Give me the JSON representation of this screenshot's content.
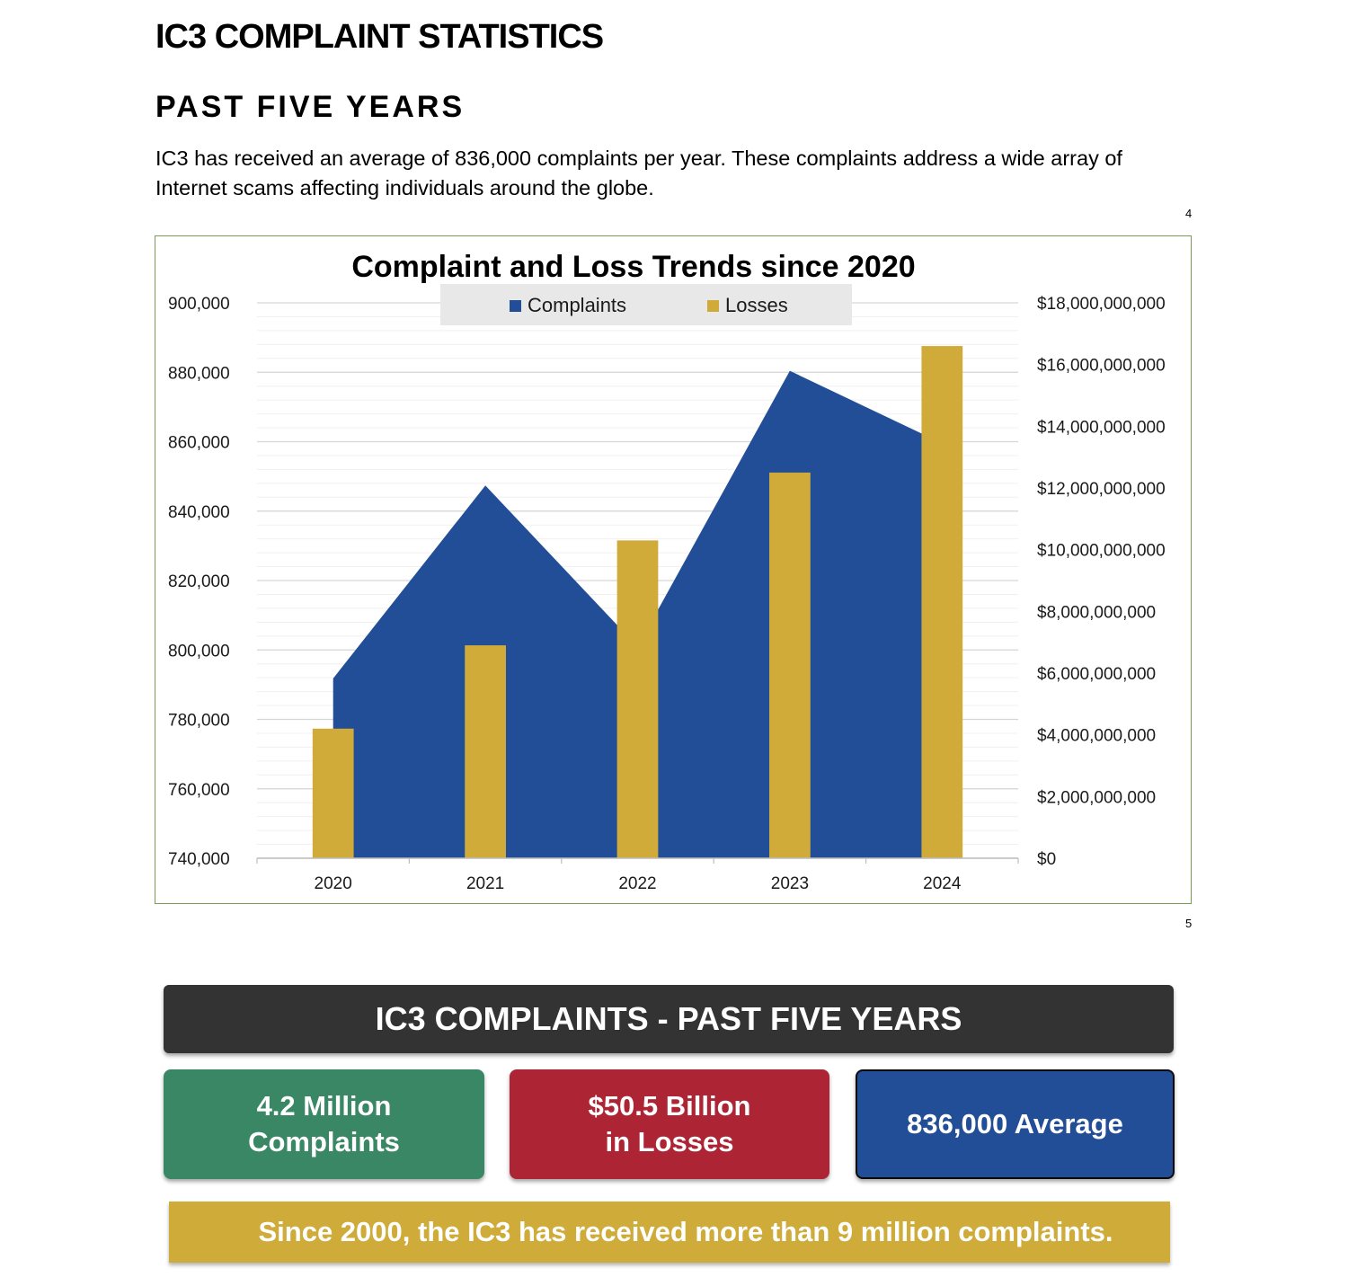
{
  "page_title": "IC3 COMPLAINT STATISTICS",
  "section_title": "PAST FIVE YEARS",
  "intro_text": "IC3 has received an average of 836,000 complaints per year. These complaints address a wide array of Internet scams affecting individuals around the globe.",
  "footnotes": {
    "chart_ref": "4",
    "summary_ref": "5"
  },
  "chart_data": {
    "type": "area",
    "title": "Complaint and Loss Trends since 2020",
    "categories": [
      "2020",
      "2021",
      "2022",
      "2023",
      "2024"
    ],
    "legend_position": "top",
    "grid": true,
    "series": [
      {
        "name": "Complaints",
        "type": "area",
        "axis": "left",
        "color": "#224d97",
        "values": [
          791790,
          847376,
          800944,
          880418,
          859532
        ]
      },
      {
        "name": "Losses",
        "type": "bar",
        "axis": "right",
        "color": "#d1ab3a",
        "values": [
          4200000000,
          6900000000,
          10300000000,
          12500000000,
          16600000000
        ]
      }
    ],
    "y_left": {
      "min": 740000,
      "max": 900000,
      "step": 20000,
      "tick_labels": [
        "740,000",
        "760,000",
        "780,000",
        "800,000",
        "820,000",
        "840,000",
        "860,000",
        "880,000",
        "900,000"
      ]
    },
    "y_right": {
      "min": 0,
      "max": 18000000000,
      "step": 2000000000,
      "tick_labels": [
        "$0",
        "$2,000,000,000",
        "$4,000,000,000",
        "$6,000,000,000",
        "$8,000,000,000",
        "$10,000,000,000",
        "$12,000,000,000",
        "$14,000,000,000",
        "$16,000,000,000",
        "$18,000,000,000"
      ]
    }
  },
  "summary": {
    "banner": "IC3 COMPLAINTS - PAST FIVE YEARS",
    "stats": [
      {
        "text": "4.2 Million\nComplaints",
        "color": "#3a8766"
      },
      {
        "text": "$50.5 Billion\nin Losses",
        "color": "#ad2535"
      },
      {
        "text": "836,000 Average",
        "color": "#224d97"
      }
    ],
    "footer": "Since 2000, the IC3 has received more than 9 million complaints."
  }
}
